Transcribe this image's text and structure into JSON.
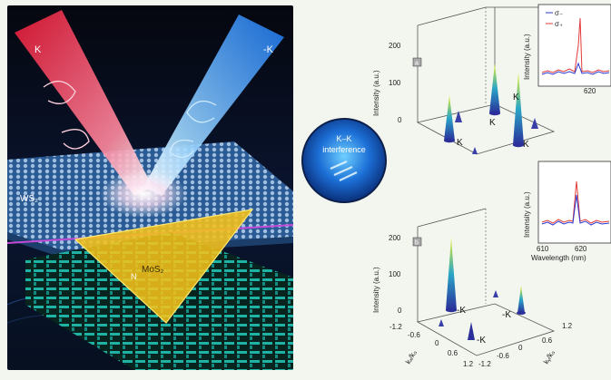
{
  "left_panel": {
    "beam_left_label": "K",
    "beam_right_label": "-K",
    "layer_top_label": "WS₂",
    "layer_mid_label": "MoS₂",
    "layer_bottom_label": "N",
    "colors": {
      "red_beam": "#ff2b4a",
      "blue_beam": "#39a6ff",
      "triangle": "#f5c21a",
      "lattice": "#1ea6a0"
    }
  },
  "interference": {
    "title_line1": "K–K",
    "title_line2": "interference"
  },
  "plot_top": {
    "panel_label": "a",
    "z_axis_label": "Intensity (a.u.)",
    "z_ticks": [
      "200",
      "100",
      "0"
    ],
    "peak_labels": [
      "K",
      "K",
      "K",
      "K"
    ]
  },
  "plot_bottom": {
    "panel_label": "b",
    "z_axis_label": "Intensity (a.u.)",
    "z_ticks": [
      "200",
      "100",
      "0"
    ],
    "peak_labels": [
      "-K",
      "-K",
      "-K"
    ],
    "x_axis_label": "kₓ/k₀",
    "y_axis_label": "kᵧ/k₀",
    "x_ticks": [
      "-1.2",
      "-0.6",
      "0",
      "0.6",
      "1.2"
    ],
    "y_ticks": [
      "-1.2",
      "-0.6",
      "0",
      "0.6",
      "1.2"
    ]
  },
  "inset_top": {
    "y_label": "Intensity (a.u.)",
    "legend": [
      "σ₋",
      "σ₊"
    ],
    "x_tick": "620"
  },
  "inset_bottom": {
    "y_label": "Intensity (a.u.)",
    "x_ticks": [
      "610",
      "620"
    ],
    "x_label": "Wavelength (nm)"
  }
}
